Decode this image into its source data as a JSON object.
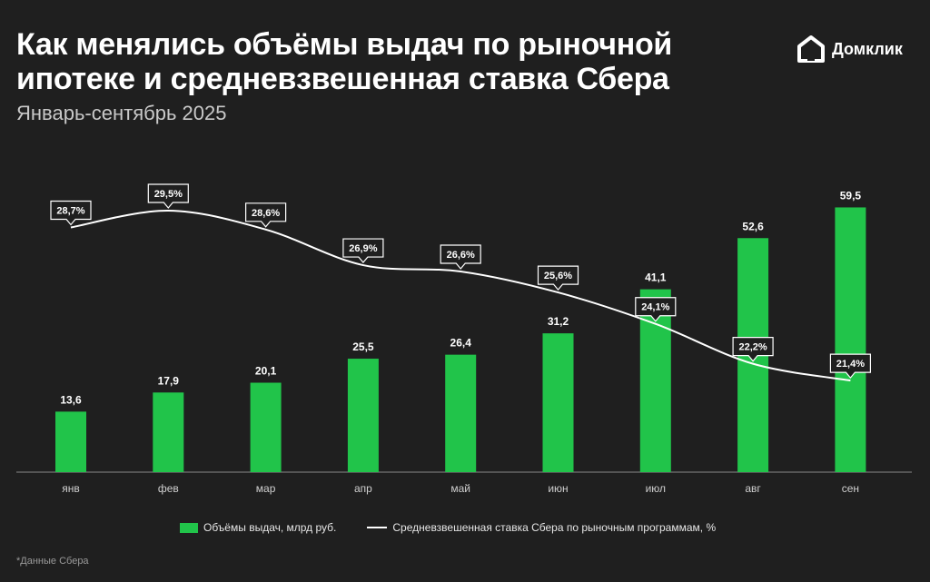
{
  "header": {
    "title": "Как менялись объёмы выдач по рыночной ипотеке и средневзвешенная ставка Сбера",
    "subtitle": "Январь-сентябрь 2025"
  },
  "brand": {
    "logo_text": "Домклик",
    "logo_icon": "domclick-house-icon"
  },
  "colors": {
    "background": "#1f1f1f",
    "bar": "#21c44a",
    "line": "#ffffff",
    "axis": "#8a8a8a"
  },
  "chart_data": {
    "type": "bar",
    "categories": [
      "янв",
      "фев",
      "мар",
      "апр",
      "май",
      "июн",
      "июл",
      "авг",
      "сен"
    ],
    "series": [
      {
        "name": "Объёмы выдач, млрд руб.",
        "type": "bar",
        "values": [
          13.6,
          17.9,
          20.1,
          25.5,
          26.4,
          31.2,
          41.1,
          52.6,
          59.5
        ],
        "labels": [
          "13,6",
          "17,9",
          "20,1",
          "25,5",
          "26,4",
          "31,2",
          "41,1",
          "52,6",
          "59,5"
        ]
      },
      {
        "name": "Средневзвешенная ставка Сбера по рыночным программам, %",
        "type": "line",
        "values": [
          28.7,
          29.5,
          28.6,
          26.9,
          26.6,
          25.6,
          24.1,
          22.2,
          21.4
        ],
        "labels": [
          "28,7%",
          "29,5%",
          "28,6%",
          "26,9%",
          "26,6%",
          "25,6%",
          "24,1%",
          "22,2%",
          "21,4%"
        ]
      }
    ],
    "legend": "bottom",
    "grid": false
  },
  "footnote": "*Данные Сбера"
}
